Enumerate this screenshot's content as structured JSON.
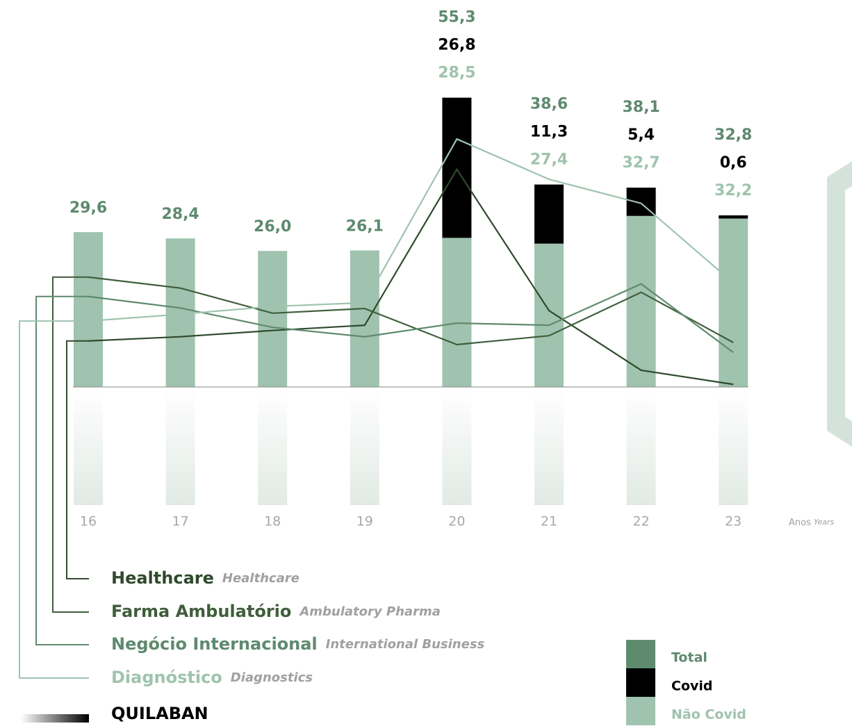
{
  "chart_data": {
    "type": "bar",
    "categories": [
      "16",
      "17",
      "18",
      "19",
      "20",
      "21",
      "22",
      "23"
    ],
    "x_label": "Anos",
    "x_label_en": "Years",
    "ylim": [
      0,
      60
    ],
    "series": [
      {
        "name": "Não Covid",
        "color": "#9fc3ae",
        "values": [
          29.6,
          28.4,
          26.0,
          26.1,
          28.5,
          27.4,
          32.7,
          32.2
        ],
        "value_labels": [
          null,
          null,
          null,
          null,
          "28,5",
          "27,4",
          "32,7",
          "32,2"
        ]
      },
      {
        "name": "Covid",
        "color": "#000000",
        "values": [
          null,
          null,
          null,
          null,
          26.8,
          11.3,
          5.4,
          0.6
        ],
        "value_labels": [
          null,
          null,
          null,
          null,
          "26,8",
          "11,3",
          "5,4",
          "0,6"
        ]
      },
      {
        "name": "Total",
        "color": "#5e8a6e",
        "values": [
          29.6,
          28.4,
          26.0,
          26.1,
          55.3,
          38.6,
          38.1,
          32.8
        ],
        "value_labels": [
          "29,6",
          "28,4",
          "26,0",
          "26,1",
          "55,3",
          "38,6",
          "38,1",
          "32,8"
        ]
      }
    ],
    "lines": [
      {
        "name": "Healthcare",
        "name_en": "Healthcare",
        "color": "#2f4a2c",
        "values": [
          8.8,
          9.6,
          10.8,
          11.8,
          41.6,
          14.6,
          3.2,
          0.5
        ]
      },
      {
        "name": "Farma Ambulatório",
        "name_en": "Ambulatory Pharma",
        "color": "#3f5e3b",
        "values": [
          21.0,
          18.9,
          14.1,
          15.0,
          8.1,
          9.8,
          18.1,
          8.5
        ]
      },
      {
        "name": "Negócio Internacional",
        "name_en": "International Business",
        "color": "#5e8a6e",
        "values": [
          17.3,
          15.1,
          11.4,
          9.6,
          12.2,
          11.8,
          19.7,
          6.6
        ]
      },
      {
        "name": "Diagnóstico",
        "name_en": "Diagnostics",
        "color": "#9fc3ae",
        "values": [
          12.6,
          13.9,
          15.4,
          16.1,
          47.4,
          39.7,
          35.1,
          19.9
        ]
      }
    ],
    "company": "QUILABAN"
  }
}
